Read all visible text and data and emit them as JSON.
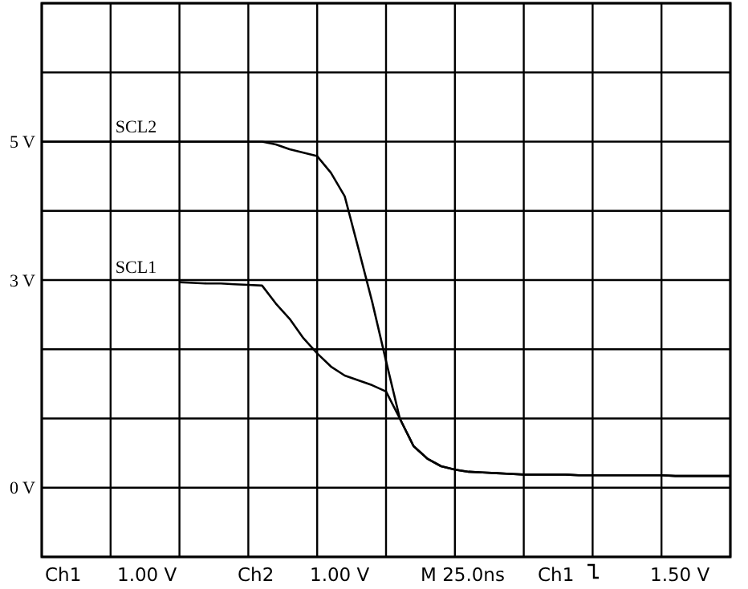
{
  "chart_data": {
    "type": "line",
    "categories": [
      null,
      null,
      null,
      null,
      null,
      null,
      null,
      null,
      null,
      null,
      null,
      null,
      null,
      null,
      null,
      null,
      null,
      null,
      null,
      null,
      null,
      null,
      null,
      null,
      null,
      null,
      null,
      null,
      null,
      null,
      null,
      null,
      null,
      null,
      null,
      null,
      null,
      null,
      null,
      null,
      null,
      null,
      null,
      null,
      null,
      null,
      null,
      null,
      null,
      null,
      null
    ],
    "ylim": [
      -1,
      7
    ],
    "yticks": [
      {
        "value": -1,
        "label": null
      },
      {
        "value": 0,
        "label": "0 V"
      },
      {
        "value": 1,
        "label": null
      },
      {
        "value": 2,
        "label": null
      },
      {
        "value": 3,
        "label": "3 V"
      },
      {
        "value": 4,
        "label": null
      },
      {
        "value": 5,
        "label": "5 V"
      },
      {
        "value": 6,
        "label": null
      },
      {
        "value": 7,
        "label": null
      }
    ],
    "grid": true,
    "marker": "none",
    "line_style": "solid",
    "series": [
      {
        "name": "SCL2",
        "color": "#000000",
        "values": [
          5.0,
          5.0,
          5.0,
          5.0,
          5.0,
          5.0,
          5.0,
          5.0,
          5.0,
          5.0,
          5.0,
          5.0,
          5.0,
          5.0,
          5.0,
          5.0,
          5.0,
          4.96,
          4.89,
          4.84,
          4.79,
          4.55,
          4.21,
          3.45,
          2.68,
          1.83,
          1.0,
          0.6,
          0.42,
          0.31,
          0.26,
          0.23,
          0.22,
          0.21,
          0.2,
          0.19,
          0.19,
          0.19,
          0.19,
          0.18,
          0.18,
          0.18,
          0.18,
          0.18,
          0.18,
          0.18,
          0.17,
          0.17,
          0.17,
          0.17,
          0.17
        ]
      },
      {
        "name": "SCL1",
        "color": "#000000",
        "values": [
          null,
          null,
          null,
          null,
          null,
          null,
          null,
          null,
          null,
          null,
          2.97,
          2.96,
          2.95,
          2.95,
          2.94,
          2.93,
          2.92,
          2.66,
          2.44,
          2.16,
          1.94,
          1.75,
          1.62,
          1.55,
          1.48,
          1.39,
          1.0,
          0.6,
          0.42,
          0.31,
          0.26,
          0.23,
          0.22,
          0.21,
          0.2,
          0.19,
          0.19,
          0.19,
          0.19,
          0.18,
          0.18,
          0.18,
          0.18,
          0.18,
          0.18,
          0.18,
          0.17,
          0.17,
          0.17,
          0.17,
          0.17
        ]
      }
    ],
    "annotations": [
      "Ch1",
      "1.00 V",
      "Ch2",
      "1.00 V",
      "M 25.0ns",
      "Ch1",
      "1.50 V"
    ]
  }
}
